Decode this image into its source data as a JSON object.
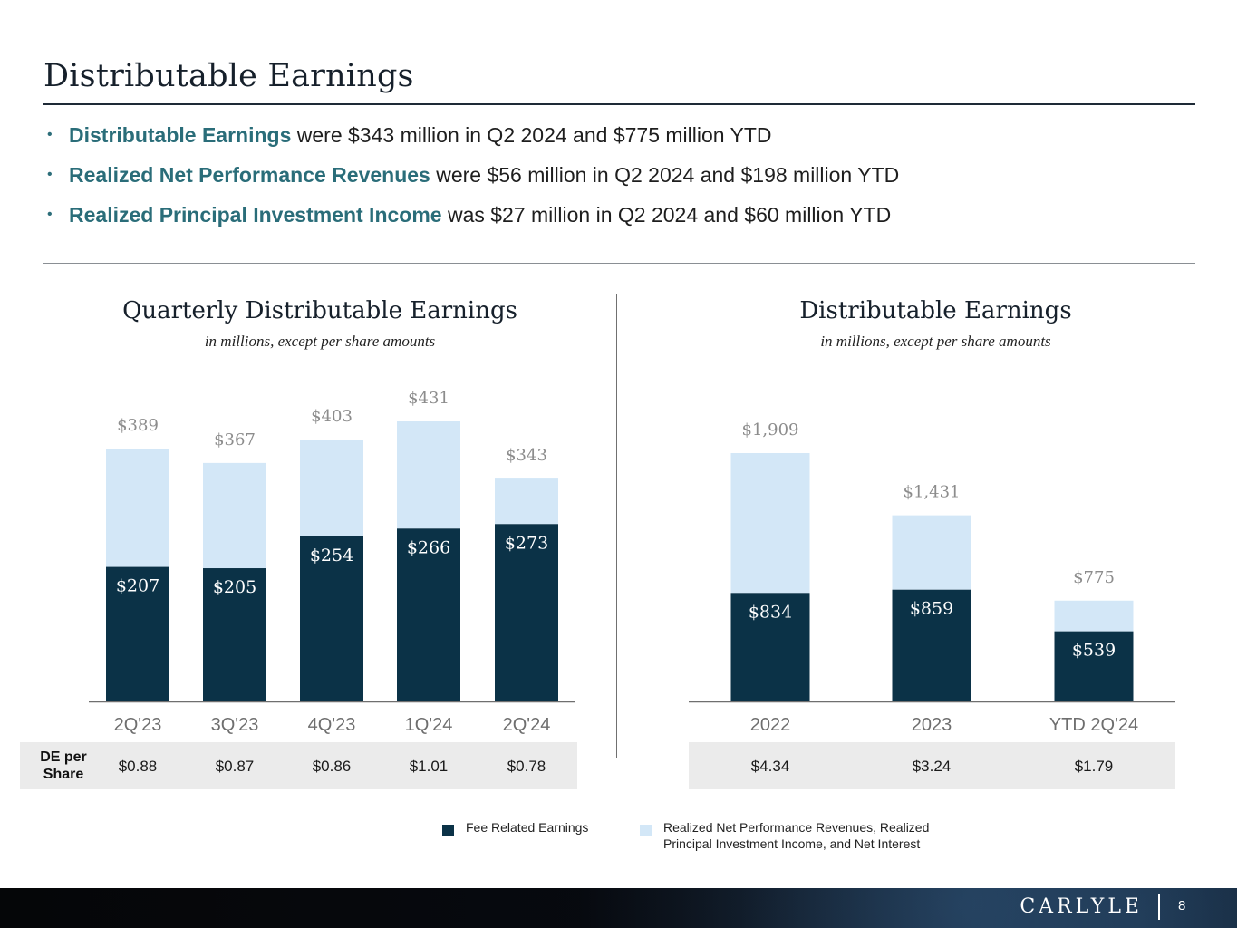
{
  "page": {
    "title": "Distributable Earnings",
    "page_number": "8",
    "brand": "CARLYLE"
  },
  "bullets": [
    {
      "highlight": "Distributable Earnings",
      "text": " were $343 million in Q2 2024 and $775 million YTD"
    },
    {
      "highlight": "Realized Net Performance Revenues",
      "text": " were $56 million in Q2 2024 and $198 million YTD"
    },
    {
      "highlight": "Realized Principal Investment Income",
      "text": " was $27 million in Q2 2024 and $60 million YTD"
    }
  ],
  "pershare_label": "DE per Share",
  "legend": {
    "fee_related": "Fee Related Earnings",
    "realized": "Realized Net Performance Revenues, Realized Principal Investment Income, and Net Interest"
  },
  "colors": {
    "fee_related": "#0b3247",
    "realized": "#d3e7f7",
    "highlight_text": "#2a6d79",
    "total_label": "#8c8c8c"
  },
  "chart_data": [
    {
      "type": "bar",
      "stacked": true,
      "title": "Quarterly Distributable Earnings",
      "subtitle": "in millions, except per share amounts",
      "categories": [
        "2Q'23",
        "3Q'23",
        "4Q'23",
        "1Q'24",
        "2Q'24"
      ],
      "series": [
        {
          "name": "Fee Related Earnings",
          "values": [
            207,
            205,
            254,
            266,
            273
          ],
          "labels": [
            "$207",
            "$205",
            "$254",
            "$266",
            "$273"
          ]
        },
        {
          "name": "Realized Net Performance Revenues, Realized Principal Investment Income, and Net Interest",
          "values": [
            182,
            162,
            149,
            165,
            70
          ]
        }
      ],
      "totals": [
        389,
        367,
        403,
        431,
        343
      ],
      "total_labels": [
        "$389",
        "$367",
        "$403",
        "$431",
        "$343"
      ],
      "per_share": [
        "$0.88",
        "$0.87",
        "$0.86",
        "$1.01",
        "$0.78"
      ],
      "ylim": [
        0,
        431
      ]
    },
    {
      "type": "bar",
      "stacked": true,
      "title": "Distributable Earnings",
      "subtitle": "in millions, except per share amounts",
      "categories": [
        "2022",
        "2023",
        "YTD 2Q'24"
      ],
      "series": [
        {
          "name": "Fee Related Earnings",
          "values": [
            834,
            859,
            539
          ],
          "labels": [
            "$834",
            "$859",
            "$539"
          ]
        },
        {
          "name": "Realized Net Performance Revenues, Realized Principal Investment Income, and Net Interest",
          "values": [
            1075,
            572,
            236
          ]
        }
      ],
      "totals": [
        1909,
        1431,
        775
      ],
      "total_labels": [
        "$1,909",
        "$1,431",
        "$775"
      ],
      "per_share": [
        "$4.34",
        "$3.24",
        "$1.79"
      ],
      "ylim": [
        0,
        1909
      ]
    }
  ]
}
